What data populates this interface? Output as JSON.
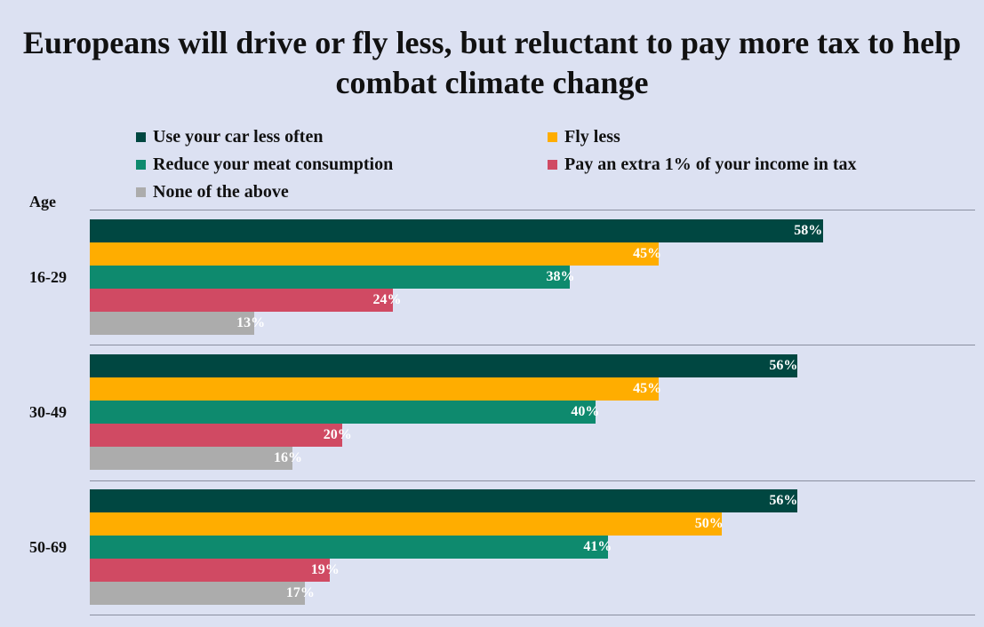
{
  "title": "Europeans will drive or fly less, but reluctant to pay more tax to help combat climate change",
  "age_header": "Age",
  "colors": {
    "background": "#dce1f2",
    "car": "#004741",
    "fly": "#ffad00",
    "meat": "#0e8a6e",
    "tax": "#d04a63",
    "none": "#acacac"
  },
  "legend": [
    {
      "label": "Use your car less often",
      "color": "#004741"
    },
    {
      "label": "Fly less",
      "color": "#ffad00"
    },
    {
      "label": "Reduce your meat consumption",
      "color": "#0e8a6e"
    },
    {
      "label": "Pay an extra 1% of your income in tax",
      "color": "#d04a63"
    },
    {
      "label": "None of the above",
      "color": "#acacac"
    }
  ],
  "chart_data": {
    "type": "bar",
    "orientation": "horizontal",
    "title": "Europeans will drive or fly less, but reluctant to pay more tax to help combat climate change",
    "ylabel": "Age",
    "categories": [
      "16-29",
      "30-49",
      "50-69"
    ],
    "series": [
      {
        "name": "Use your car less often",
        "values": [
          58,
          56,
          56
        ]
      },
      {
        "name": "Fly less",
        "values": [
          45,
          45,
          50
        ]
      },
      {
        "name": "Reduce your meat consumption",
        "values": [
          38,
          40,
          41
        ]
      },
      {
        "name": "Pay an extra 1% of your income in tax",
        "values": [
          24,
          20,
          19
        ]
      },
      {
        "name": "None of the above",
        "values": [
          13,
          16,
          17
        ]
      }
    ],
    "value_labels": [
      [
        "58%",
        "56%",
        "56%"
      ],
      [
        "45%",
        "45%",
        "50%"
      ],
      [
        "38%",
        "40%",
        "41%"
      ],
      [
        "24%",
        "20%",
        "19%"
      ],
      [
        "13%",
        "16%",
        "17%"
      ]
    ],
    "xlim": [
      0,
      70
    ],
    "legend_position": "top",
    "grid": false
  }
}
